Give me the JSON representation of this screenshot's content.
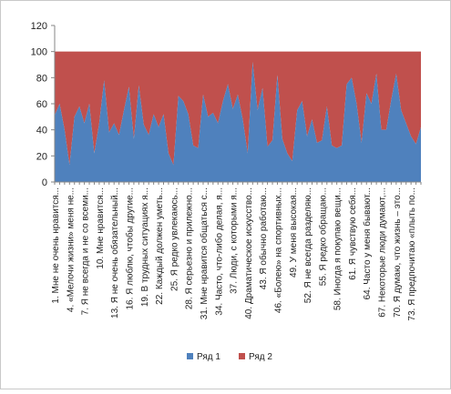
{
  "chart_data": {
    "type": "area",
    "stacked": true,
    "ylim": [
      0,
      120
    ],
    "yticks": [
      0,
      20,
      40,
      60,
      80,
      100,
      120
    ],
    "grid": false,
    "legend_position": "bottom",
    "categories": [
      "1. Мне не очень нравится...",
      "4. «Мелочи жизни» меня не...",
      "7. Я не всегда и не со всеми...",
      "10. Мне нравится...",
      "13. Я не очень обязательный...",
      "16. Я люблю, чтобы другие...",
      "19. В трудных ситуациях я...",
      "22. Каждый должен уметь...",
      "25. Я редко увлекаюсь...",
      "28. Я серьезно и прилежно...",
      "31. Мне нравится общаться с...",
      "34. Часто, что-либо делая, я...",
      "37. Люди, с которыми я...",
      "40. Драматическое искусство...",
      "43. Я обычно работаю...",
      "46. «Болею» на спортивных...",
      "49. У меня высокая...",
      "52. Я не всегда разделяю...",
      "55. Я редко обращаю...",
      "58. Иногда я покупаю вещи...",
      "61. Я чувствую себя...",
      "64. Часто у меня бывают...",
      "67. Некоторые люди думают,...",
      "70. Я думаю, что жизнь – это...",
      "73. Я предпочитаю «плыть по..."
    ],
    "x": [
      1,
      2,
      3,
      4,
      5,
      6,
      7,
      8,
      9,
      10,
      11,
      12,
      13,
      14,
      15,
      16,
      17,
      18,
      19,
      20,
      21,
      22,
      23,
      24,
      25,
      26,
      27,
      28,
      29,
      30,
      31,
      32,
      33,
      34,
      35,
      36,
      37,
      38,
      39,
      40,
      41,
      42,
      43,
      44,
      45,
      46,
      47,
      48,
      49,
      50,
      51,
      52,
      53,
      54,
      55,
      56,
      57,
      58,
      59,
      60,
      61,
      62,
      63,
      64,
      65,
      66,
      67,
      68,
      69,
      70,
      71,
      72,
      73,
      74,
      75
    ],
    "series": [
      {
        "name": "Ряд 1",
        "color": "#4F81BD",
        "values": [
          51,
          60,
          40,
          13,
          50,
          58,
          45,
          60,
          22,
          45,
          78,
          38,
          45,
          36,
          55,
          73,
          33,
          74,
          44,
          36,
          52,
          42,
          52,
          22,
          13,
          66,
          62,
          52,
          28,
          26,
          67,
          50,
          53,
          45,
          62,
          75,
          56,
          67,
          48,
          22,
          92,
          55,
          72,
          27,
          32,
          82,
          33,
          22,
          16,
          55,
          62,
          35,
          48,
          30,
          32,
          58,
          28,
          26,
          28,
          75,
          80,
          60,
          30,
          68,
          60,
          83,
          40,
          40,
          63,
          83,
          55,
          45,
          35,
          29,
          42
        ]
      },
      {
        "name": "Ряд 2",
        "color": "#C0504D",
        "values": [
          49,
          40,
          60,
          87,
          50,
          42,
          55,
          40,
          78,
          55,
          22,
          62,
          55,
          64,
          45,
          27,
          67,
          26,
          56,
          64,
          48,
          58,
          48,
          78,
          87,
          34,
          38,
          48,
          72,
          74,
          33,
          50,
          47,
          55,
          38,
          25,
          44,
          33,
          52,
          78,
          8,
          45,
          28,
          73,
          68,
          18,
          67,
          78,
          84,
          45,
          38,
          65,
          52,
          70,
          68,
          42,
          72,
          74,
          72,
          25,
          20,
          40,
          70,
          32,
          40,
          17,
          60,
          60,
          37,
          17,
          45,
          55,
          65,
          71,
          58
        ]
      }
    ]
  }
}
